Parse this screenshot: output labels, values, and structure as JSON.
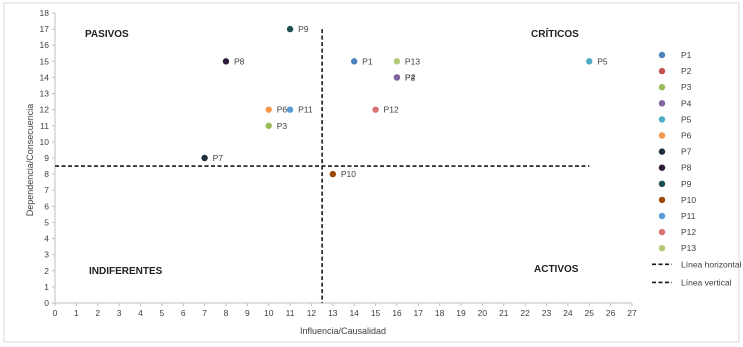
{
  "chart_data": {
    "type": "scatter",
    "xlabel": "Influencia/Causalidad",
    "ylabel": "Dependencia/Consecuencia",
    "xlim": [
      0,
      27
    ],
    "ylim": [
      0,
      18
    ],
    "x_ticks": [
      "0",
      "1",
      "2",
      "3",
      "4",
      "5",
      "6",
      "7",
      "8",
      "9",
      "10",
      "11",
      "12",
      "13",
      "14",
      "15",
      "16",
      "17",
      "18",
      "19",
      "20",
      "21",
      "22",
      "23",
      "24",
      "25",
      "26",
      "27"
    ],
    "y_ticks": [
      "0",
      "1",
      "2",
      "3",
      "4",
      "5",
      "6",
      "7",
      "8",
      "9",
      "10",
      "11",
      "12",
      "13",
      "14",
      "15",
      "16",
      "17",
      "18"
    ],
    "grid": false,
    "legend_position": "right",
    "quadrant_labels": {
      "top_left": "PASIVOS",
      "top_right": "CRÍTICOS",
      "bottom_left": "INDIFERENTES",
      "bottom_right": "ACTIVOS"
    },
    "series": [
      {
        "name": "P1",
        "x": 14,
        "y": 15,
        "color": "#4F81BD"
      },
      {
        "name": "P2",
        "x": 16,
        "y": 14,
        "color": "#C0504D"
      },
      {
        "name": "P3",
        "x": 10,
        "y": 11,
        "color": "#9BBB59"
      },
      {
        "name": "P4",
        "x": 16,
        "y": 14,
        "color": "#8064A2"
      },
      {
        "name": "P5",
        "x": 25,
        "y": 15,
        "color": "#4BACC6"
      },
      {
        "name": "P6",
        "x": 10,
        "y": 12,
        "color": "#F79646"
      },
      {
        "name": "P7",
        "x": 7,
        "y": 9,
        "color": "#1F2D3D"
      },
      {
        "name": "P8",
        "x": 8,
        "y": 15,
        "color": "#2E1A3B"
      },
      {
        "name": "P9",
        "x": 11,
        "y": 17,
        "color": "#1F5050"
      },
      {
        "name": "P10",
        "x": 13,
        "y": 8,
        "color": "#984807"
      },
      {
        "name": "P11",
        "x": 11,
        "y": 12,
        "color": "#5B9BD5"
      },
      {
        "name": "P12",
        "x": 15,
        "y": 12,
        "color": "#D97373"
      },
      {
        "name": "P13",
        "x": 16,
        "y": 15,
        "color": "#B3C97A"
      }
    ],
    "reference_lines": [
      {
        "name": "Línea horizontal",
        "orientation": "horizontal",
        "value": 8.5,
        "from": 0,
        "to": 25
      },
      {
        "name": "Línea vertical",
        "orientation": "vertical",
        "value": 12.5,
        "from": 0,
        "to": 17
      }
    ]
  }
}
